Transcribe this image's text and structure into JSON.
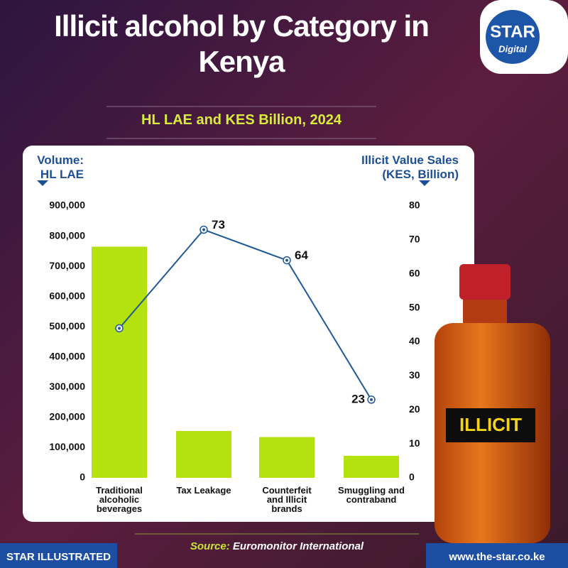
{
  "chart_data": {
    "type": "bar",
    "title": "Illicit alcohol by Category in Kenya",
    "subtitle": "HL LAE and KES Billion, 2024",
    "ylabel": "Volume: HL LAE",
    "y2label": "Illicit Value Sales (KES, Billion)",
    "categories": [
      "Traditional alcoholic beverages",
      "Tax Leakage",
      "Counterfeit and Illicit brands",
      "Smuggling and contraband"
    ],
    "series": [
      {
        "type": "bar",
        "color": "#b3e20f",
        "values": [
          765000,
          155000,
          135000,
          73000
        ]
      },
      {
        "type": "line",
        "axis": "y2",
        "color": "#1f5a96",
        "values": [
          44,
          73,
          64,
          23
        ],
        "value_labels": [
          null,
          "73",
          "64",
          "23"
        ]
      }
    ],
    "ylim": [
      0,
      900000
    ],
    "yticks": [
      0,
      {
        "value": 100000,
        "label": "100,000"
      },
      {
        "value": 200000,
        "label": "200,000"
      },
      {
        "value": 300000,
        "label": "300,000"
      },
      {
        "value": 400000,
        "label": "400,000"
      },
      {
        "value": 500000,
        "label": "500,000"
      },
      {
        "value": 600000,
        "label": "600,000"
      },
      {
        "value": 700000,
        "label": "700,000"
      },
      {
        "value": 800000,
        "label": "800,000"
      },
      {
        "value": 900000,
        "label": "900,000"
      }
    ],
    "y2lim": [
      0,
      80
    ],
    "y2ticks": [
      0,
      10,
      20,
      30,
      40,
      50,
      60,
      70,
      80
    ]
  },
  "branding": {
    "logo": "STAR",
    "logo_sub": "Digital",
    "bottle_label": "ILLICIT",
    "footer_left": "STAR ILLUSTRATED",
    "source_label": "Source:",
    "source": "Euromonitor International",
    "footer_right": "www.the-star.co.ke"
  }
}
